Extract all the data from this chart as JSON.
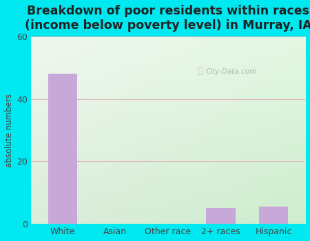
{
  "title": "Breakdown of poor residents within races\n(income below poverty level) in Murray, IA",
  "categories": [
    "White",
    "Asian",
    "Other race",
    "2+ races",
    "Hispanic"
  ],
  "values": [
    48,
    0,
    0,
    5,
    5.5
  ],
  "bar_color": "#c8a8d8",
  "ylabel": "absolute numbers",
  "ylim": [
    0,
    60
  ],
  "yticks": [
    0,
    20,
    40,
    60
  ],
  "bg_outer": "#00e8f0",
  "grid_color": "#e0b8b8",
  "title_color": "#222222",
  "title_fontsize": 12.5,
  "axis_label_color": "#444444",
  "tick_color": "#444444",
  "watermark": "City-Data.com",
  "plot_bg_topleft": "#e8f5ea",
  "plot_bg_bottomright": "#d0ecd4"
}
